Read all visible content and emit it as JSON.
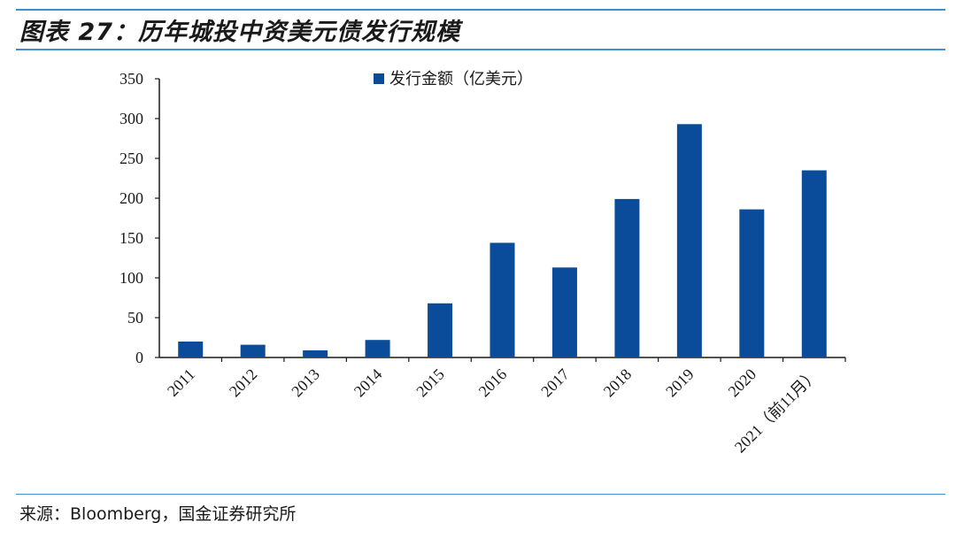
{
  "title": "图表 27：历年城投中资美元债发行规模",
  "source": "来源：Bloomberg，国金证券研究所",
  "colors": {
    "bar": "#0b4c9a",
    "rule": "#3d8fd1",
    "axis": "#1a1a1a"
  },
  "chart_data": {
    "type": "bar",
    "categories": [
      "2011",
      "2012",
      "2013",
      "2014",
      "2015",
      "2016",
      "2017",
      "2018",
      "2019",
      "2020",
      "2021（前11月）"
    ],
    "series": [
      {
        "name": "发行金额（亿美元）",
        "values": [
          20,
          16,
          9,
          22,
          68,
          144,
          113,
          199,
          293,
          186,
          235
        ]
      }
    ],
    "ylim": [
      0,
      350
    ],
    "yticks": [
      0,
      50,
      100,
      150,
      200,
      250,
      300,
      350
    ],
    "xlabel": "",
    "ylabel": "",
    "legend_position": "top-center",
    "grid": false
  }
}
